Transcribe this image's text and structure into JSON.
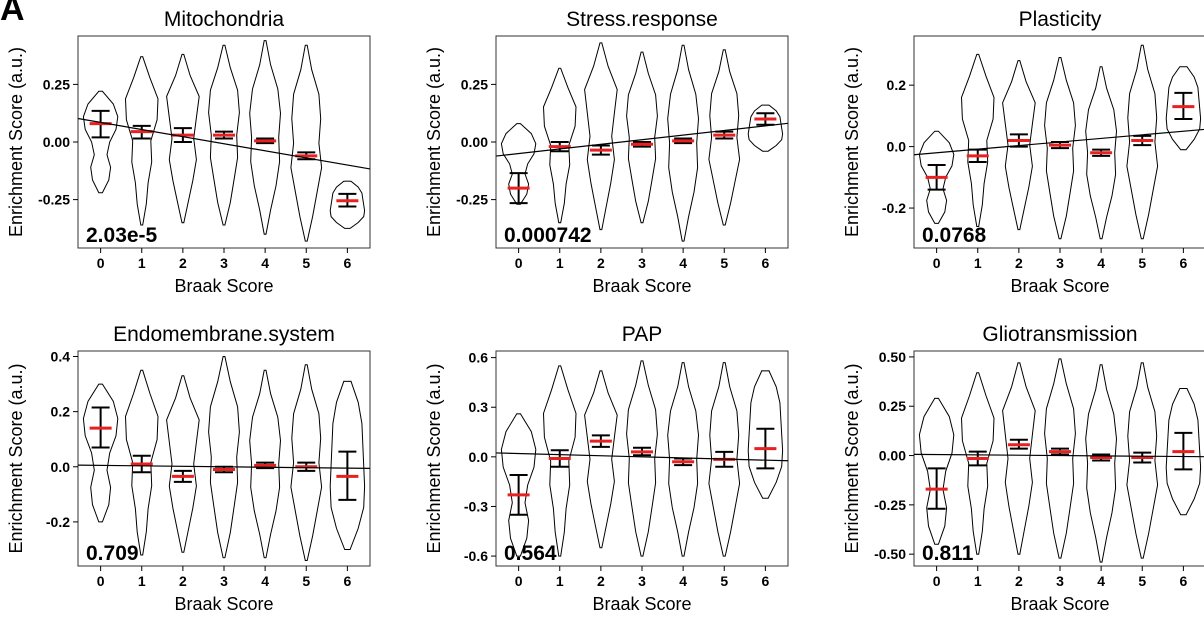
{
  "panel_label": "A",
  "chart_data": [
    {
      "type": "violin",
      "title": "Mitochondria",
      "xlabel": "Braak Score",
      "ylabel": "Enrichment Score (a.u.)",
      "categories": [
        "0",
        "1",
        "2",
        "3",
        "4",
        "5",
        "6"
      ],
      "yticks": [
        0.25,
        0.0,
        -0.25
      ],
      "ytick_labels": [
        "0.25",
        "0.00",
        "-0.25"
      ],
      "ylim": [
        -0.46,
        0.46
      ],
      "pvalue": "2.03e-5",
      "means": [
        0.08,
        0.045,
        0.03,
        0.03,
        0.005,
        -0.06,
        -0.255
      ],
      "error_low": [
        0.02,
        0.015,
        0.0,
        0.015,
        -0.005,
        -0.075,
        -0.28
      ],
      "error_high": [
        0.135,
        0.07,
        0.06,
        0.045,
        0.015,
        -0.045,
        -0.225
      ],
      "violin_min": [
        -0.22,
        -0.36,
        -0.35,
        -0.36,
        -0.4,
        -0.43,
        -0.375
      ],
      "violin_max": [
        0.22,
        0.37,
        0.38,
        0.42,
        0.44,
        0.42,
        -0.17
      ],
      "regression": {
        "y_at_0": 0.085,
        "y_at_6": -0.1
      }
    },
    {
      "type": "violin",
      "title": "Stress.response",
      "xlabel": "Braak Score",
      "ylabel": "Enrichment Score (a.u.)",
      "categories": [
        "0",
        "1",
        "2",
        "3",
        "4",
        "5",
        "6"
      ],
      "yticks": [
        0.25,
        0.0,
        -0.25
      ],
      "ytick_labels": [
        "0.25",
        "0.00",
        "-0.25"
      ],
      "ylim": [
        -0.46,
        0.46
      ],
      "pvalue": "0.000742",
      "means": [
        -0.2,
        -0.02,
        -0.035,
        -0.01,
        0.005,
        0.03,
        0.1
      ],
      "error_low": [
        -0.265,
        -0.04,
        -0.055,
        -0.02,
        -0.005,
        0.015,
        0.075
      ],
      "error_high": [
        -0.135,
        0.0,
        -0.015,
        0.0,
        0.015,
        0.045,
        0.125
      ],
      "violin_min": [
        -0.27,
        -0.35,
        -0.38,
        -0.35,
        -0.43,
        -0.36,
        -0.04
      ],
      "violin_max": [
        0.08,
        0.32,
        0.43,
        0.39,
        0.42,
        0.4,
        0.16
      ],
      "regression": {
        "y_at_0": -0.05,
        "y_at_6": 0.07
      }
    },
    {
      "type": "violin",
      "title": "Plasticity",
      "xlabel": "Braak Score",
      "ylabel": "Enrichment Score (a.u.)",
      "categories": [
        "0",
        "1",
        "2",
        "3",
        "4",
        "5",
        "6"
      ],
      "yticks": [
        0.2,
        0.0,
        -0.2
      ],
      "ytick_labels": [
        "0.2",
        "0.0",
        "-0.2"
      ],
      "ylim": [
        -0.33,
        0.36
      ],
      "pvalue": "0.0768",
      "means": [
        -0.1,
        -0.03,
        0.02,
        0.005,
        -0.02,
        0.02,
        0.13
      ],
      "error_low": [
        -0.14,
        -0.05,
        0.0,
        -0.005,
        -0.03,
        0.005,
        0.09
      ],
      "error_high": [
        -0.06,
        -0.01,
        0.04,
        0.015,
        -0.01,
        0.035,
        0.175
      ],
      "violin_min": [
        -0.25,
        -0.26,
        -0.27,
        -0.3,
        -0.3,
        -0.3,
        -0.01
      ],
      "violin_max": [
        0.05,
        0.3,
        0.28,
        0.29,
        0.26,
        0.33,
        0.26
      ],
      "regression": {
        "y_at_0": -0.02,
        "y_at_6": 0.05
      }
    },
    {
      "type": "violin",
      "title": "Endomembrane.system",
      "xlabel": "Braak Score",
      "ylabel": "Enrichment Score (a.u.)",
      "categories": [
        "0",
        "1",
        "2",
        "3",
        "4",
        "5",
        "6"
      ],
      "yticks": [
        0.4,
        0.2,
        0.0,
        -0.2
      ],
      "ytick_labels": [
        "0.4",
        "0.2",
        "0.0",
        "-0.2"
      ],
      "ylim": [
        -0.36,
        0.42
      ],
      "pvalue": "0.709",
      "means": [
        0.14,
        0.01,
        -0.035,
        -0.01,
        0.005,
        0.0,
        -0.035
      ],
      "error_low": [
        0.07,
        -0.02,
        -0.055,
        -0.02,
        -0.005,
        -0.015,
        -0.12
      ],
      "error_high": [
        0.215,
        0.04,
        -0.015,
        0.0,
        0.015,
        0.015,
        0.055
      ],
      "violin_min": [
        -0.2,
        -0.32,
        -0.31,
        -0.33,
        -0.33,
        -0.34,
        -0.3
      ],
      "violin_max": [
        0.3,
        0.35,
        0.33,
        0.4,
        0.35,
        0.37,
        0.31
      ],
      "regression": {
        "y_at_0": 0.005,
        "y_at_6": -0.005
      }
    },
    {
      "type": "violin",
      "title": "PAP",
      "xlabel": "Braak Score",
      "ylabel": "Enrichment Score (a.u.)",
      "categories": [
        "0",
        "1",
        "2",
        "3",
        "4",
        "5",
        "6"
      ],
      "yticks": [
        0.6,
        0.3,
        0.0,
        -0.3,
        -0.6
      ],
      "ytick_labels": [
        "0.6",
        "0.3",
        "0.0",
        "-0.3",
        "-0.6"
      ],
      "ylim": [
        -0.66,
        0.64
      ],
      "pvalue": "0.564",
      "means": [
        -0.23,
        -0.01,
        0.095,
        0.03,
        -0.03,
        -0.015,
        0.05
      ],
      "error_low": [
        -0.35,
        -0.06,
        0.06,
        0.01,
        -0.05,
        -0.06,
        -0.07
      ],
      "error_high": [
        -0.11,
        0.04,
        0.13,
        0.055,
        -0.01,
        0.03,
        0.17
      ],
      "violin_min": [
        -0.6,
        -0.6,
        -0.55,
        -0.6,
        -0.6,
        -0.6,
        -0.25
      ],
      "violin_max": [
        0.26,
        0.55,
        0.52,
        0.58,
        0.57,
        0.57,
        0.52
      ],
      "regression": {
        "y_at_0": 0.02,
        "y_at_6": -0.02
      }
    },
    {
      "type": "violin",
      "title": "Gliotransmission",
      "xlabel": "Braak Score",
      "ylabel": "Enrichment Score (a.u.)",
      "categories": [
        "0",
        "1",
        "2",
        "3",
        "4",
        "5",
        "6"
      ],
      "yticks": [
        0.5,
        0.25,
        0.0,
        -0.25,
        -0.5
      ],
      "ytick_labels": [
        "0.50",
        "0.25",
        "0.00",
        "-0.25",
        "-0.50"
      ],
      "ylim": [
        -0.56,
        0.53
      ],
      "pvalue": "0.811",
      "means": [
        -0.17,
        -0.015,
        0.055,
        0.02,
        -0.01,
        -0.01,
        0.02
      ],
      "error_low": [
        -0.27,
        -0.05,
        0.035,
        0.005,
        -0.025,
        -0.035,
        -0.07
      ],
      "error_high": [
        -0.065,
        0.02,
        0.08,
        0.035,
        0.005,
        0.015,
        0.115
      ],
      "violin_min": [
        -0.45,
        -0.5,
        -0.5,
        -0.52,
        -0.54,
        -0.52,
        -0.3
      ],
      "violin_max": [
        0.29,
        0.42,
        0.47,
        0.49,
        0.46,
        0.47,
        0.34
      ],
      "regression": {
        "y_at_0": 0.005,
        "y_at_6": -0.005
      }
    }
  ]
}
